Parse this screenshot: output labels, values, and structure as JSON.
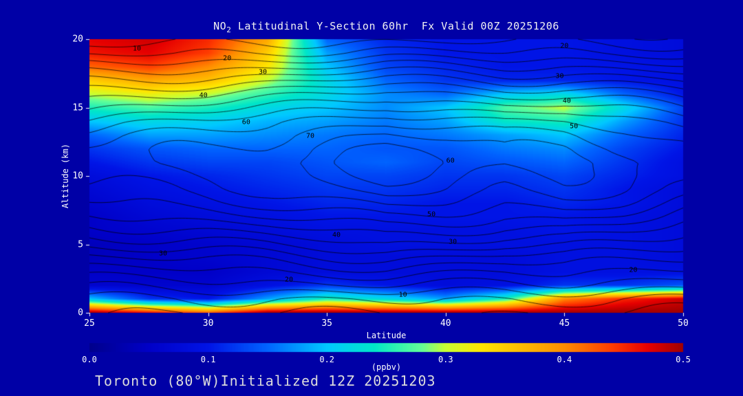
{
  "title": {
    "prefix": "NO",
    "sub": "2",
    "rest": " Latitudinal Y-Section 60hr  Fx Valid 00Z 20251206"
  },
  "footer_text": "Toronto (80°W)Initialized 12Z 20251203",
  "colors": {
    "background": "#0000A6",
    "axis_text": "#FFFFFF",
    "title_text": "#F2F2F2",
    "footer_text_color": "#DCDCDC",
    "contour_line": "#000000"
  },
  "axes": {
    "x": {
      "label": "Latitude",
      "min": 25,
      "max": 50,
      "ticks": [
        25,
        30,
        35,
        40,
        45,
        50
      ]
    },
    "y": {
      "label": "Altitude (km)",
      "min": 0,
      "max": 20,
      "ticks": [
        0,
        5,
        10,
        15,
        20
      ]
    }
  },
  "colorbar": {
    "label": "(ppbv)",
    "min": 0.0,
    "max": 0.5,
    "tick_labels": [
      "0.0",
      "0.1",
      "0.2",
      "0.3",
      "0.4",
      "0.5"
    ],
    "stops": [
      {
        "v": 0.0,
        "c": "#00008C"
      },
      {
        "v": 0.05,
        "c": "#0000C8"
      },
      {
        "v": 0.1,
        "c": "#0014E6"
      },
      {
        "v": 0.15,
        "c": "#0064FF"
      },
      {
        "v": 0.2,
        "c": "#00C8FF"
      },
      {
        "v": 0.24,
        "c": "#00E6C8"
      },
      {
        "v": 0.28,
        "c": "#64FF96"
      },
      {
        "v": 0.3,
        "c": "#C8FF32"
      },
      {
        "v": 0.33,
        "c": "#FFE600"
      },
      {
        "v": 0.37,
        "c": "#FFB400"
      },
      {
        "v": 0.4,
        "c": "#FF8C00"
      },
      {
        "v": 0.44,
        "c": "#FF3C00"
      },
      {
        "v": 0.47,
        "c": "#E60000"
      },
      {
        "v": 0.5,
        "c": "#A00000"
      }
    ]
  },
  "chart_data": {
    "type": "heatmap",
    "title": "NO2 Latitudinal Y-Section 60hr Fx Valid 00Z 20251206",
    "xlabel": "Latitude",
    "ylabel": "Altitude (km)",
    "units": "ppbv",
    "x_lat": [
      25,
      27.5,
      30,
      32.5,
      35,
      37.5,
      40,
      42.5,
      45,
      47.5,
      50
    ],
    "y_alt_km": [
      0,
      1,
      2,
      3,
      4,
      5,
      6,
      7,
      8,
      9,
      10,
      11,
      12,
      13,
      14,
      15,
      16,
      17,
      18,
      19,
      20
    ],
    "values_ppbv": [
      [
        0.5,
        0.46,
        0.42,
        0.5,
        0.5,
        0.5,
        0.5,
        0.5,
        0.5,
        0.5,
        0.5
      ],
      [
        0.2,
        0.12,
        0.1,
        0.18,
        0.25,
        0.22,
        0.18,
        0.25,
        0.4,
        0.45,
        0.48
      ],
      [
        0.06,
        0.06,
        0.06,
        0.09,
        0.12,
        0.1,
        0.08,
        0.09,
        0.12,
        0.12,
        0.14
      ],
      [
        0.05,
        0.05,
        0.05,
        0.07,
        0.08,
        0.08,
        0.08,
        0.08,
        0.09,
        0.09,
        0.09
      ],
      [
        0.04,
        0.05,
        0.06,
        0.07,
        0.08,
        0.08,
        0.08,
        0.08,
        0.09,
        0.09,
        0.08
      ],
      [
        0.04,
        0.05,
        0.06,
        0.07,
        0.08,
        0.09,
        0.09,
        0.09,
        0.09,
        0.09,
        0.08
      ],
      [
        0.05,
        0.06,
        0.07,
        0.08,
        0.09,
        0.09,
        0.09,
        0.09,
        0.1,
        0.09,
        0.08
      ],
      [
        0.05,
        0.07,
        0.08,
        0.09,
        0.1,
        0.1,
        0.1,
        0.1,
        0.1,
        0.09,
        0.08
      ],
      [
        0.06,
        0.08,
        0.09,
        0.1,
        0.11,
        0.11,
        0.1,
        0.1,
        0.11,
        0.1,
        0.08
      ],
      [
        0.07,
        0.09,
        0.1,
        0.11,
        0.12,
        0.12,
        0.11,
        0.11,
        0.12,
        0.1,
        0.08
      ],
      [
        0.08,
        0.1,
        0.11,
        0.12,
        0.13,
        0.13,
        0.12,
        0.12,
        0.13,
        0.11,
        0.09
      ],
      [
        0.1,
        0.12,
        0.13,
        0.13,
        0.14,
        0.15,
        0.13,
        0.14,
        0.15,
        0.12,
        0.09
      ],
      [
        0.12,
        0.14,
        0.15,
        0.15,
        0.15,
        0.14,
        0.14,
        0.16,
        0.17,
        0.13,
        0.1
      ],
      [
        0.15,
        0.18,
        0.18,
        0.17,
        0.16,
        0.15,
        0.16,
        0.18,
        0.2,
        0.15,
        0.11
      ],
      [
        0.2,
        0.22,
        0.21,
        0.19,
        0.18,
        0.16,
        0.18,
        0.24,
        0.25,
        0.18,
        0.12
      ],
      [
        0.25,
        0.27,
        0.25,
        0.22,
        0.2,
        0.17,
        0.2,
        0.27,
        0.3,
        0.22,
        0.13
      ],
      [
        0.3,
        0.32,
        0.3,
        0.26,
        0.22,
        0.17,
        0.15,
        0.2,
        0.22,
        0.15,
        0.1
      ],
      [
        0.35,
        0.38,
        0.36,
        0.3,
        0.22,
        0.15,
        0.12,
        0.11,
        0.11,
        0.1,
        0.09
      ],
      [
        0.42,
        0.44,
        0.4,
        0.33,
        0.2,
        0.13,
        0.11,
        0.1,
        0.1,
        0.1,
        0.09
      ],
      [
        0.46,
        0.47,
        0.44,
        0.35,
        0.18,
        0.12,
        0.1,
        0.1,
        0.1,
        0.09,
        0.08
      ],
      [
        0.47,
        0.48,
        0.45,
        0.38,
        0.15,
        0.11,
        0.1,
        0.1,
        0.1,
        0.09,
        0.08
      ]
    ],
    "contour_overlay": {
      "levels": [
        5,
        10,
        15,
        20,
        25,
        30,
        35,
        40,
        45,
        50,
        55,
        60,
        65,
        70,
        75
      ],
      "labeled_levels": [
        10,
        20,
        30,
        40,
        50,
        60,
        70
      ],
      "profile_by_alt_km": [
        5,
        10,
        18,
        25,
        32,
        40,
        47,
        54,
        60,
        65,
        68,
        70,
        68,
        64,
        58,
        50,
        42,
        33,
        24,
        15,
        8
      ],
      "lat_multiplier": [
        0.9,
        0.93,
        0.96,
        1.0,
        1.06,
        1.12,
        1.08,
        1.02,
        1.04,
        0.98,
        0.9
      ],
      "labels": [
        {
          "text": "10",
          "lat": 27.0,
          "alt": 19.3
        },
        {
          "text": "20",
          "lat": 30.8,
          "alt": 18.6
        },
        {
          "text": "30",
          "lat": 32.3,
          "alt": 17.6
        },
        {
          "text": "40",
          "lat": 29.8,
          "alt": 15.9
        },
        {
          "text": "60",
          "lat": 31.6,
          "alt": 13.9
        },
        {
          "text": "70",
          "lat": 34.3,
          "alt": 12.9
        },
        {
          "text": "20",
          "lat": 45.0,
          "alt": 19.5
        },
        {
          "text": "30",
          "lat": 44.8,
          "alt": 17.3
        },
        {
          "text": "40",
          "lat": 45.1,
          "alt": 15.5
        },
        {
          "text": "50",
          "lat": 45.4,
          "alt": 13.6
        },
        {
          "text": "60",
          "lat": 40.2,
          "alt": 11.1
        },
        {
          "text": "50",
          "lat": 39.4,
          "alt": 7.2
        },
        {
          "text": "40",
          "lat": 35.4,
          "alt": 5.7
        },
        {
          "text": "30",
          "lat": 40.3,
          "alt": 5.2
        },
        {
          "text": "30",
          "lat": 28.1,
          "alt": 4.3
        },
        {
          "text": "20",
          "lat": 33.4,
          "alt": 2.4
        },
        {
          "text": "20",
          "lat": 47.9,
          "alt": 3.1
        },
        {
          "text": "10",
          "lat": 38.2,
          "alt": 1.3
        }
      ]
    }
  }
}
